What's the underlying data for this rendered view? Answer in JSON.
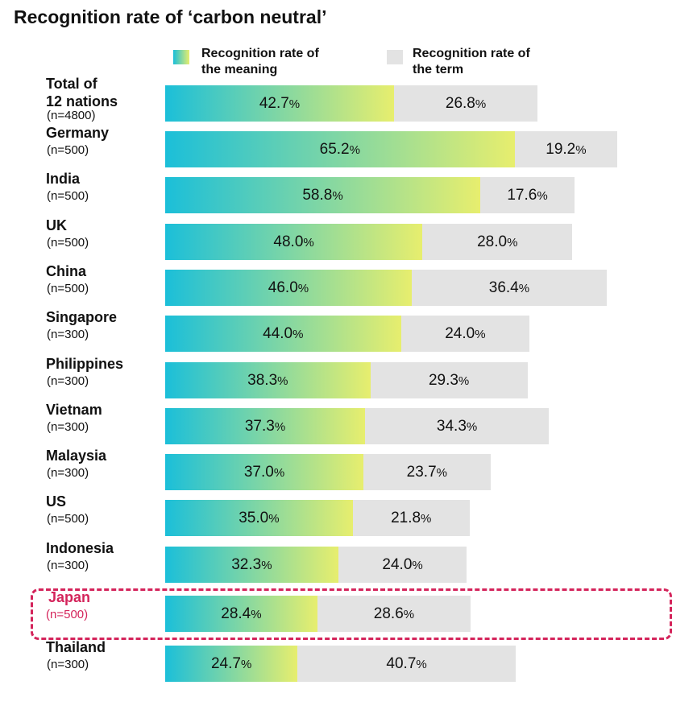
{
  "chart_data": {
    "type": "bar",
    "stacked": true,
    "orientation": "horizontal",
    "title": "Recognition rate of ‘carbon neutral’",
    "legend_placement": "top",
    "series": [
      {
        "name": "Recognition rate of the meaning",
        "name_lines": [
          "Recognition rate of",
          "the meaning"
        ],
        "colors": [
          "#1bbfd9",
          "#e7ee6e"
        ],
        "values": [
          42.7,
          65.2,
          58.8,
          48.0,
          46.0,
          44.0,
          38.3,
          37.3,
          37.0,
          35.0,
          32.3,
          28.4,
          24.7
        ],
        "labels": [
          "42.7",
          "65.2",
          "58.8",
          "48.0",
          "46.0",
          "44.0",
          "38.3",
          "37.3",
          "37.0",
          "35.0",
          "32.3",
          "28.4",
          "24.7"
        ]
      },
      {
        "name": "Recognition rate of the term",
        "name_lines": [
          "Recognition rate of",
          "the term"
        ],
        "colors": [
          "#e3e3e3"
        ],
        "values": [
          26.8,
          19.2,
          17.6,
          28.0,
          36.4,
          24.0,
          29.3,
          34.3,
          23.7,
          21.8,
          24.0,
          28.6,
          40.7
        ],
        "labels": [
          "26.8",
          "19.2",
          "17.6",
          "28.0",
          "36.4",
          "24.0",
          "29.3",
          "34.3",
          "23.7",
          "21.8",
          "24.0",
          "28.6",
          "40.7"
        ]
      }
    ],
    "unit": "%",
    "categories": [
      {
        "name_lines": [
          "Total of",
          "12 nations"
        ],
        "n": "(n=4800)"
      },
      {
        "name_lines": [
          "Germany"
        ],
        "n": "(n=500)"
      },
      {
        "name_lines": [
          "India"
        ],
        "n": "(n=500)"
      },
      {
        "name_lines": [
          "UK"
        ],
        "n": "(n=500)"
      },
      {
        "name_lines": [
          "China"
        ],
        "n": "(n=500)"
      },
      {
        "name_lines": [
          "Singapore"
        ],
        "n": "(n=300)"
      },
      {
        "name_lines": [
          "Philippines"
        ],
        "n": "(n=300)"
      },
      {
        "name_lines": [
          "Vietnam"
        ],
        "n": "(n=300)"
      },
      {
        "name_lines": [
          "Malaysia"
        ],
        "n": "(n=300)"
      },
      {
        "name_lines": [
          "US"
        ],
        "n": "(n=500)"
      },
      {
        "name_lines": [
          "Indonesia"
        ],
        "n": "(n=300)"
      },
      {
        "name_lines": [
          "Japan"
        ],
        "n": "(n=500)"
      },
      {
        "name_lines": [
          "Thailand"
        ],
        "n": "(n=300)"
      }
    ],
    "highlighted_category": "Japan",
    "highlight_color": "#d4245b",
    "xlim": [
      0,
      100
    ],
    "grid": false
  }
}
